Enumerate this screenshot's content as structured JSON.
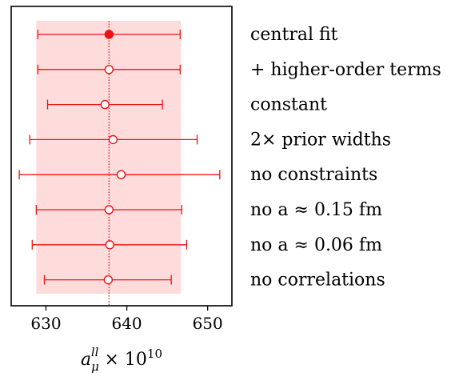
{
  "chart_data": {
    "type": "scatter",
    "orientation": "horizontal-errorbar",
    "xlabel": "a_μ^ll × 10^10",
    "xlim": [
      625.7,
      653.0
    ],
    "xticks": [
      630,
      640,
      650
    ],
    "reference_value": 637.8,
    "band": [
      628.8,
      646.7
    ],
    "grid": false,
    "legend": "none",
    "colors": {
      "accent": "#ee1111",
      "band": "#ffdcdc"
    },
    "points": [
      {
        "label": "central fit",
        "x": 637.8,
        "xerr_low": 629.0,
        "xerr_high": 646.6,
        "filled": true
      },
      {
        "label": "+ higher-order terms",
        "x": 637.8,
        "xerr_low": 629.0,
        "xerr_high": 646.6,
        "filled": false
      },
      {
        "label": "constant",
        "x": 637.3,
        "xerr_low": 630.2,
        "xerr_high": 644.4,
        "filled": false
      },
      {
        "label": "2× prior widths",
        "x": 638.3,
        "xerr_low": 628.0,
        "xerr_high": 648.7,
        "filled": false
      },
      {
        "label": "no constraints",
        "x": 639.3,
        "xerr_low": 626.7,
        "xerr_high": 651.5,
        "filled": false
      },
      {
        "label": "no a ≈ 0.15 fm",
        "x": 637.8,
        "xerr_low": 628.8,
        "xerr_high": 646.8,
        "filled": false
      },
      {
        "label": "no a ≈ 0.06 fm",
        "x": 637.9,
        "xerr_low": 628.3,
        "xerr_high": 647.4,
        "filled": false
      },
      {
        "label": "no correlations",
        "x": 637.7,
        "xerr_low": 629.8,
        "xerr_high": 645.5,
        "filled": false
      }
    ]
  }
}
